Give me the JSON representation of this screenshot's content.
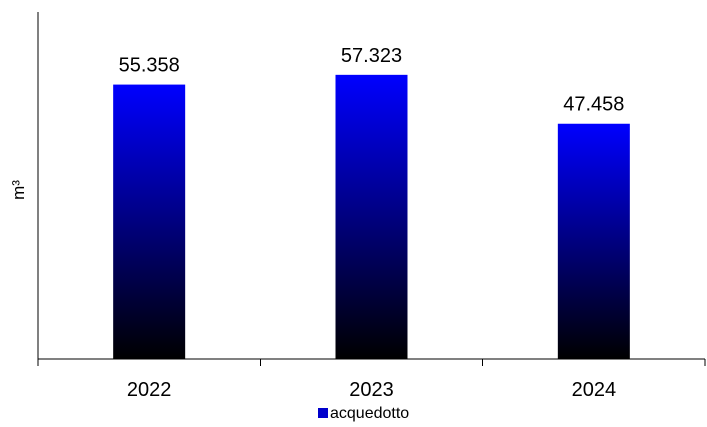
{
  "chart_data": {
    "type": "bar",
    "categories": [
      "2022",
      "2023",
      "2024"
    ],
    "series": [
      {
        "name": "acquedotto",
        "values": [
          55358,
          57323,
          47458
        ]
      }
    ],
    "data_labels": [
      "55.358",
      "57.323",
      "47.458"
    ],
    "ylabel": "m³",
    "xlabel": "",
    "ylim": [
      0,
      70000
    ],
    "grid": false,
    "legend": "bottom",
    "colors": {
      "bar_top": "#0000ff",
      "bar_bottom": "#000000",
      "legend_swatch": "#0000cc"
    }
  }
}
